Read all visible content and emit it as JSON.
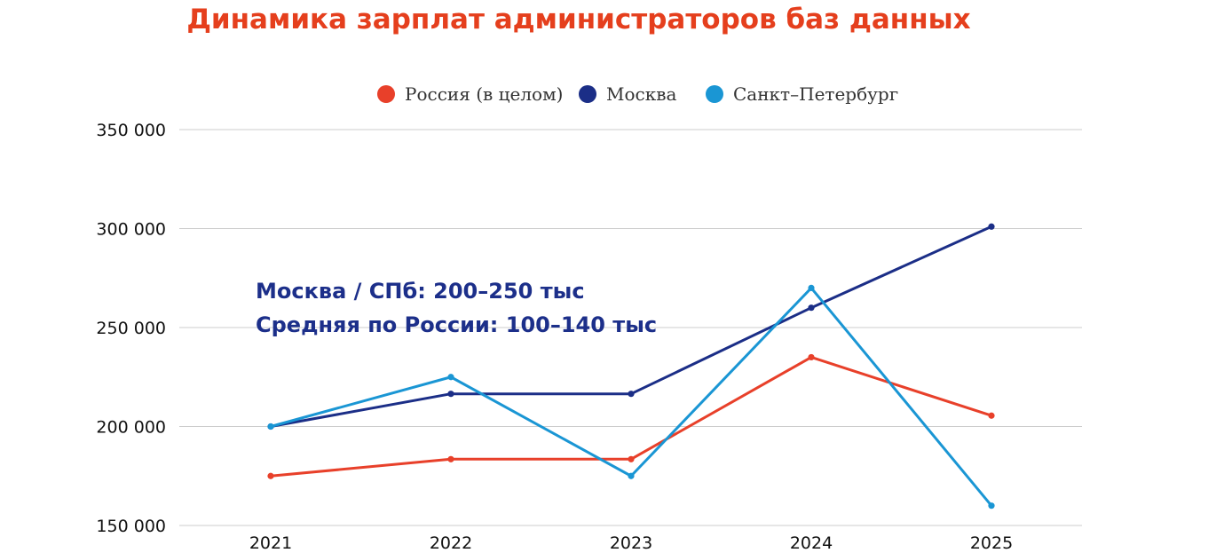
{
  "colors": {
    "title": "#e53f1d",
    "annotation": "#1c2f8a",
    "grid": "#cccccc",
    "axis_text": "#111111"
  },
  "chart_data": {
    "type": "line",
    "title": "Динамика зарплат администраторов баз данных",
    "xlabel": "",
    "ylabel": "",
    "x": [
      "2021",
      "2022",
      "2023",
      "2024",
      "2025"
    ],
    "ylim": [
      150000,
      350000
    ],
    "yticks": [
      150000,
      200000,
      250000,
      300000,
      350000
    ],
    "ytick_labels": [
      "150 000",
      "200 000",
      "250 000",
      "300 000",
      "350 000"
    ],
    "grid": true,
    "legend_position": "top-center",
    "series": [
      {
        "name": "Россия (в целом)",
        "color": "#e8402a",
        "values": [
          175000,
          183500,
          183500,
          235000,
          205500
        ]
      },
      {
        "name": "Москва",
        "color": "#1b2e87",
        "values": [
          200000,
          216500,
          216500,
          260000,
          301000
        ]
      },
      {
        "name": "Санкт–Петербург",
        "color": "#1a96d4",
        "values": [
          200000,
          225000,
          175000,
          270000,
          160000
        ]
      }
    ],
    "annotations": [
      "Москва / СПб: 200–250 тыс",
      "Средняя по России: 100–140 тыс"
    ]
  }
}
